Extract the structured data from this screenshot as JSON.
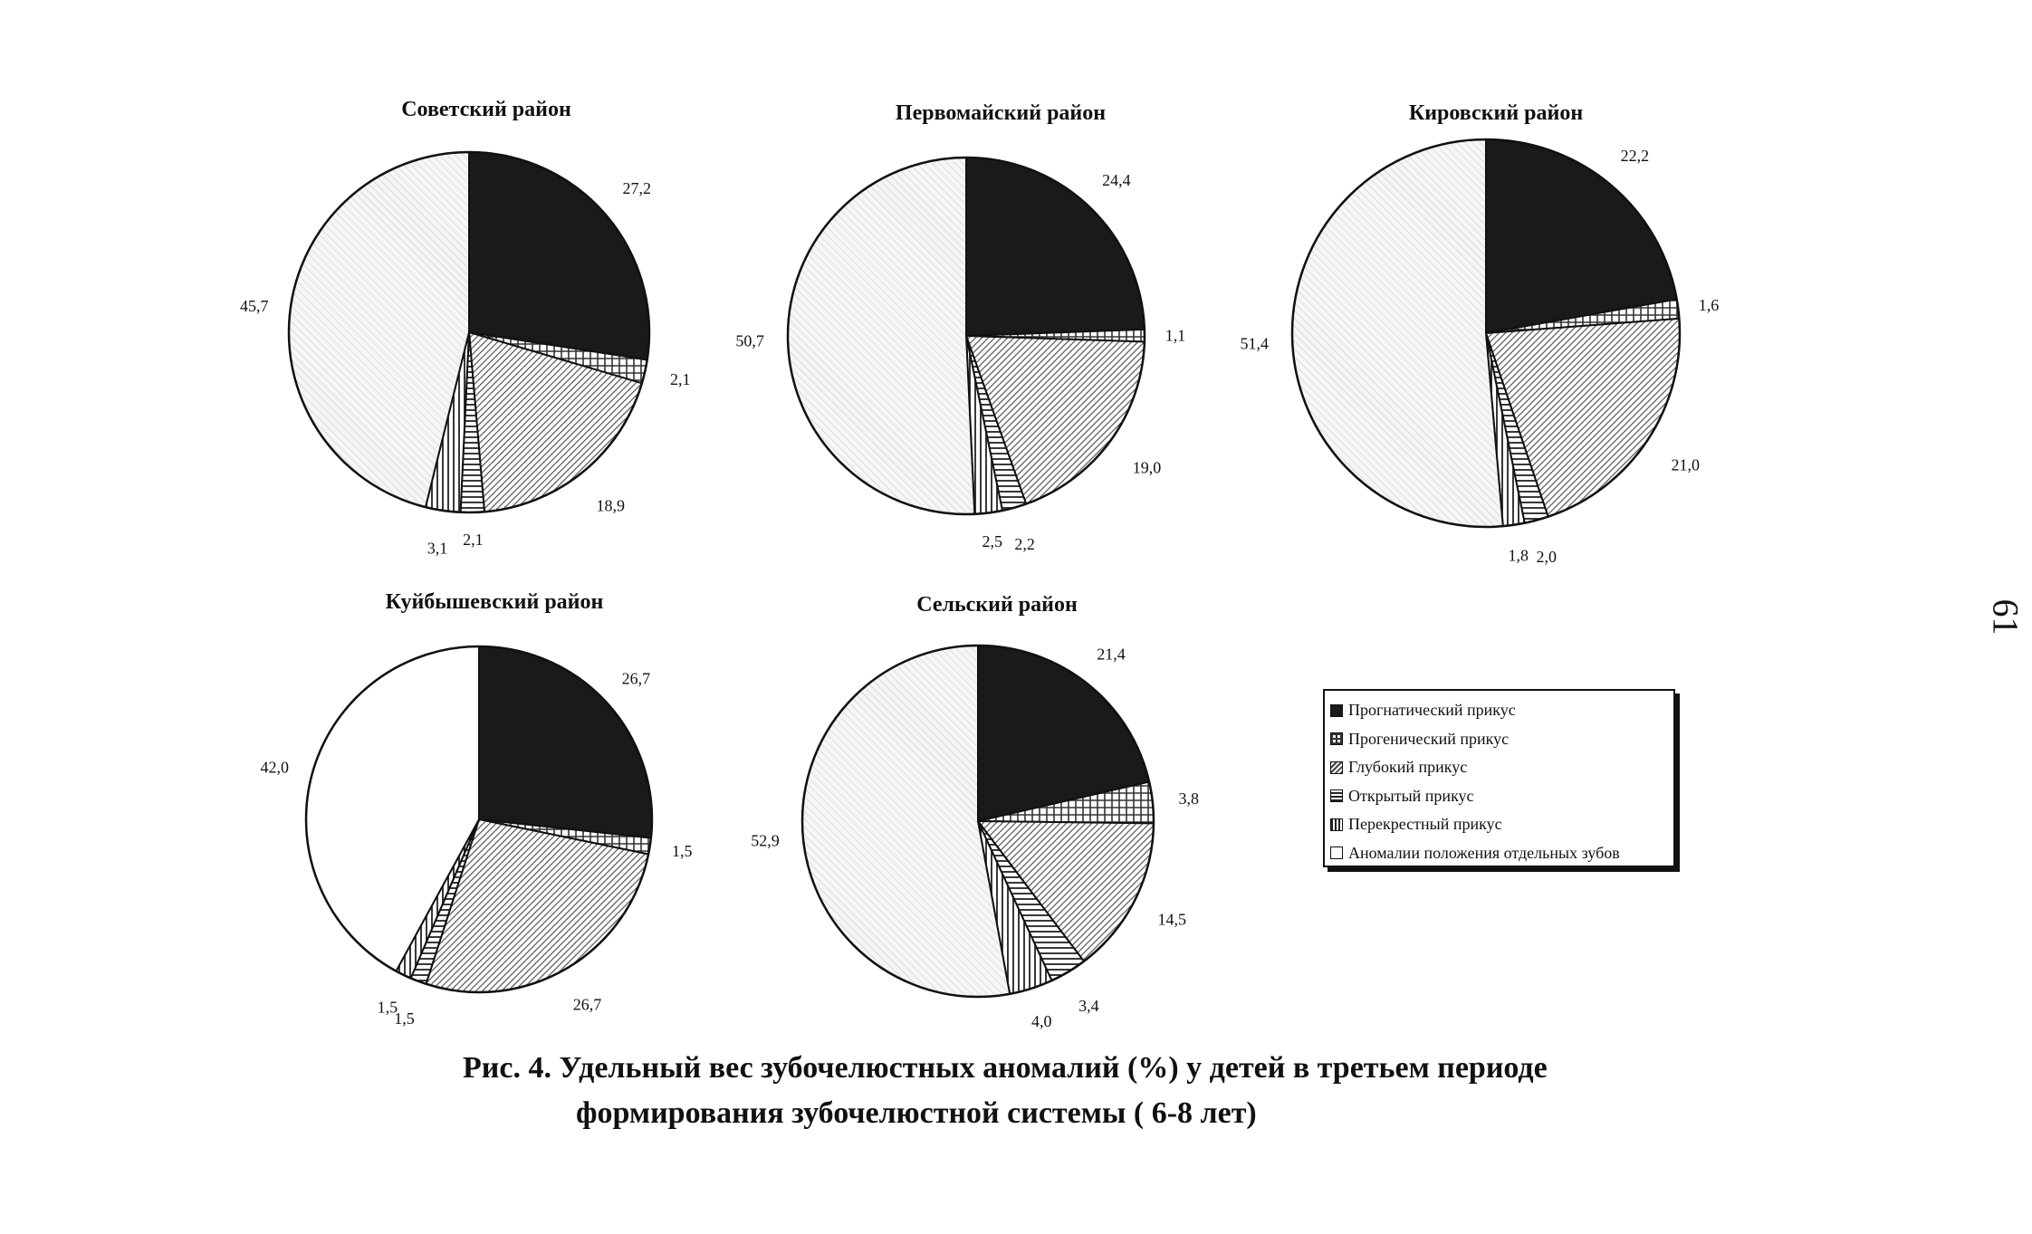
{
  "categories": [
    "Прогнатический прикус",
    "Прогенический прикус",
    "Глубокий прикус",
    "Открытый прикус",
    "Перекрестный прикус",
    "Аномалии положения отдельных зубов"
  ],
  "legend_position": "right of bottom row",
  "chart_data": [
    {
      "type": "pie",
      "title": "Советский район",
      "categories": [
        "Прогнатический прикус",
        "Прогенический прикус",
        "Глубокий прикус",
        "Открытый прикус",
        "Перекрестный прикус",
        "Аномалии положения отдельных зубов"
      ],
      "values": [
        27.2,
        2.1,
        18.9,
        2.1,
        3.1,
        45.7
      ],
      "labels": [
        "27,2",
        "2,1",
        "18,9",
        "2,1",
        "3,1",
        "45,7"
      ]
    },
    {
      "type": "pie",
      "title": "Первомайский район",
      "categories": [
        "Прогнатический прикус",
        "Прогенический прикус",
        "Глубокий прикус",
        "Открытый прикус",
        "Перекрестный прикус",
        "Аномалии положения отдельных зубов"
      ],
      "values": [
        24.4,
        1.1,
        19.0,
        2.2,
        2.5,
        50.7
      ],
      "labels": [
        "24,4",
        "1,1",
        "19,0",
        "2,2",
        "2,5",
        "50,7"
      ]
    },
    {
      "type": "pie",
      "title": "Кировский район",
      "categories": [
        "Прогнатический прикус",
        "Прогенический прикус",
        "Глубокий прикус",
        "Открытый прикус",
        "Перекрестный прикус",
        "Аномалии положения отдельных зубов"
      ],
      "values": [
        22.2,
        1.6,
        21.0,
        2.0,
        1.8,
        51.4
      ],
      "labels": [
        "22,2",
        "1,6",
        "21,0",
        "2,0",
        "1,8",
        "51,4"
      ]
    },
    {
      "type": "pie",
      "title": "Куйбышевский район",
      "categories": [
        "Прогнатический прикус",
        "Прогенический прикус",
        "Глубокий прикус",
        "Открытый прикус",
        "Перекрестный прикус",
        "Аномалии положения отдельных зубов"
      ],
      "values": [
        26.7,
        1.5,
        26.7,
        1.5,
        1.5,
        42.0
      ],
      "labels": [
        "26,7",
        "1,5",
        "26,7",
        "1,5",
        "1,5",
        "42,0"
      ]
    },
    {
      "type": "pie",
      "title": "Сельский район",
      "categories": [
        "Прогнатический прикус",
        "Прогенический прикус",
        "Глубокий прикус",
        "Открытый прикус",
        "Перекрестный прикус",
        "Аномалии положения отдельных зубов"
      ],
      "values": [
        21.4,
        3.8,
        14.5,
        3.4,
        4.0,
        52.9
      ],
      "labels": [
        "21,4",
        "3,8",
        "14,5",
        "3,4",
        "4,0",
        "52,9"
      ]
    }
  ],
  "caption": {
    "line1": "Рис. 4. Удельный вес зубочелюстных аномалий (%) у детей в третьем периоде",
    "line2": "формирования зубочелюстной системы ( 6-8 лет)"
  },
  "page_number": "61"
}
